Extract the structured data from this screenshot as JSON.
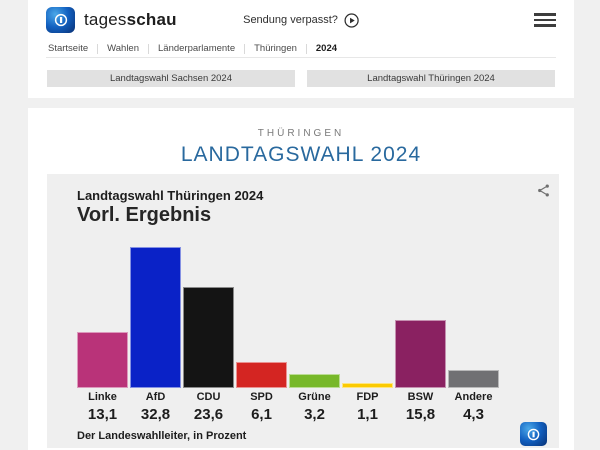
{
  "header": {
    "brand_light": "tages",
    "brand_bold": "schau",
    "broadcast_link": "Sendung verpasst?",
    "breadcrumb": [
      "Startseite",
      "Wahlen",
      "Länderparlamente",
      "Thüringen",
      "2024"
    ]
  },
  "quick_links": [
    "Landtagswahl Sachsen 2024",
    "Landtagswahl Thüringen 2024"
  ],
  "page": {
    "kicker": "THÜRINGEN",
    "title": "LANDTAGSWAHL 2024",
    "title_color": "#29699e"
  },
  "chart_data": {
    "type": "bar",
    "title": "Landtagswahl Thüringen 2024",
    "subtitle": "Vorl. Ergebnis",
    "source": "Der Landeswahlleiter, in Prozent",
    "unit": "Prozent",
    "categories": [
      "Linke",
      "AfD",
      "CDU",
      "SPD",
      "Grüne",
      "FDP",
      "BSW",
      "Andere"
    ],
    "values": [
      13.1,
      32.8,
      23.6,
      6.1,
      3.2,
      1.1,
      15.8,
      4.3
    ],
    "value_labels": [
      "13,1",
      "32,8",
      "23,6",
      "6,1",
      "3,2",
      "1,1",
      "15,8",
      "4,3"
    ],
    "colors": [
      "#b93379",
      "#0a22c7",
      "#141414",
      "#d42522",
      "#77b829",
      "#fbca00",
      "#8a2161",
      "#707073"
    ],
    "ylim": [
      0,
      35
    ],
    "legend_position": "below-bars",
    "grid": false
  }
}
